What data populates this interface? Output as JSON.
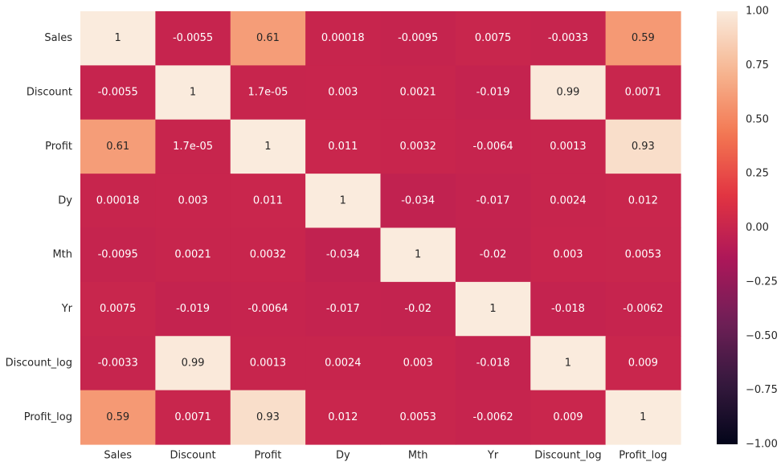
{
  "chart_data": {
    "type": "heatmap",
    "title": "",
    "xlabel": "",
    "ylabel": "",
    "x_labels": [
      "Sales",
      "Discount",
      "Profit",
      "Dy",
      "Mth",
      "Yr",
      "Discount_log",
      "Profit_log"
    ],
    "y_labels": [
      "Sales",
      "Discount",
      "Profit",
      "Dy",
      "Mth",
      "Yr",
      "Discount_log",
      "Profit_log"
    ],
    "values": [
      [
        1,
        -0.0055,
        0.61,
        0.00018,
        -0.0095,
        0.0075,
        -0.0033,
        0.59
      ],
      [
        -0.0055,
        1,
        1.7e-05,
        0.003,
        0.0021,
        -0.019,
        0.99,
        0.0071
      ],
      [
        0.61,
        1.7e-05,
        1,
        0.011,
        0.0032,
        -0.0064,
        0.0013,
        0.93
      ],
      [
        0.00018,
        0.003,
        0.011,
        1,
        -0.034,
        -0.017,
        0.0024,
        0.012
      ],
      [
        -0.0095,
        0.0021,
        0.0032,
        -0.034,
        1,
        -0.02,
        0.003,
        0.0053
      ],
      [
        0.0075,
        -0.019,
        -0.0064,
        -0.017,
        -0.02,
        1,
        -0.018,
        -0.0062
      ],
      [
        -0.0033,
        0.99,
        0.0013,
        0.0024,
        0.003,
        -0.018,
        1,
        0.009
      ],
      [
        0.59,
        0.0071,
        0.93,
        0.012,
        0.0053,
        -0.0062,
        0.009,
        1
      ]
    ],
    "cell_labels": [
      [
        "1",
        "-0.0055",
        "0.61",
        "0.00018",
        "-0.0095",
        "0.0075",
        "-0.0033",
        "0.59"
      ],
      [
        "-0.0055",
        "1",
        "1.7e-05",
        "0.003",
        "0.0021",
        "-0.019",
        "0.99",
        "0.0071"
      ],
      [
        "0.61",
        "1.7e-05",
        "1",
        "0.011",
        "0.0032",
        "-0.0064",
        "0.0013",
        "0.93"
      ],
      [
        "0.00018",
        "0.003",
        "0.011",
        "1",
        "-0.034",
        "-0.017",
        "0.0024",
        "0.012"
      ],
      [
        "-0.0095",
        "0.0021",
        "0.0032",
        "-0.034",
        "1",
        "-0.02",
        "0.003",
        "0.0053"
      ],
      [
        "0.0075",
        "-0.019",
        "-0.0064",
        "-0.017",
        "-0.02",
        "1",
        "-0.018",
        "-0.0062"
      ],
      [
        "-0.0033",
        "0.99",
        "0.0013",
        "0.0024",
        "0.003",
        "-0.018",
        "1",
        "0.009"
      ],
      [
        "0.59",
        "0.0071",
        "0.93",
        "0.012",
        "0.0053",
        "-0.0062",
        "0.009",
        "1"
      ]
    ],
    "colorbar": {
      "range": [
        -1.0,
        1.0
      ],
      "ticks": [
        1.0,
        0.75,
        0.5,
        0.25,
        0.0,
        -0.25,
        -0.5,
        -0.75,
        -1.0
      ],
      "tick_labels": [
        "1.00",
        "0.75",
        "0.50",
        "0.25",
        "0.00",
        "−0.25",
        "−0.50",
        "−0.75",
        "−1.00"
      ]
    },
    "colormap": "rocket",
    "colormap_stops": [
      "#03051a",
      "#36193e",
      "#701f57",
      "#ad1759",
      "#e13342",
      "#f37651",
      "#f6b48f",
      "#faebdd"
    ],
    "annotation_color_dark": "#262626",
    "annotation_color_light": "#ffffff",
    "grid": false,
    "legend": "colorbar-right"
  }
}
